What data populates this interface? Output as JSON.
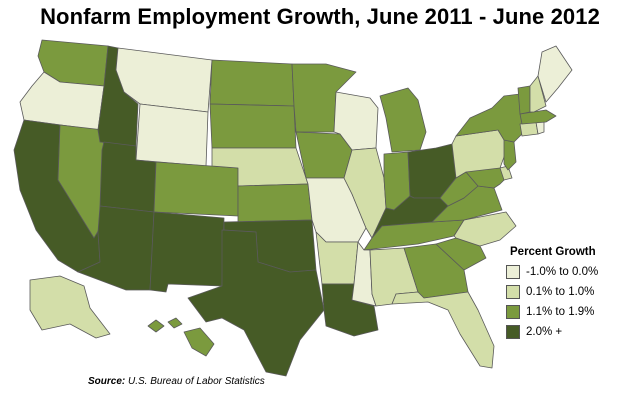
{
  "title": "Nonfarm Employment Growth, June 2011 - June 2012",
  "legend": {
    "title": "Percent Growth",
    "items": [
      {
        "label": "-1.0% to 0.0%",
        "color": "#ecefd7"
      },
      {
        "label": "0.1% to 1.0%",
        "color": "#d3dea9"
      },
      {
        "label": "1.1% to 1.9%",
        "color": "#7b9a3e"
      },
      {
        "label": "2.0% +",
        "color": "#465b26"
      }
    ]
  },
  "source": {
    "label": "Source:",
    "text": "U.S. Bureau of Labor Statistics"
  },
  "states": [
    {
      "name": "WA",
      "class": 2
    },
    {
      "name": "OR",
      "class": 0
    },
    {
      "name": "CA",
      "class": 3
    },
    {
      "name": "NV",
      "class": 2
    },
    {
      "name": "ID",
      "class": 3
    },
    {
      "name": "MT",
      "class": 0
    },
    {
      "name": "WY",
      "class": 0
    },
    {
      "name": "UT",
      "class": 3
    },
    {
      "name": "AZ",
      "class": 3
    },
    {
      "name": "CO",
      "class": 2
    },
    {
      "name": "NM",
      "class": 3
    },
    {
      "name": "ND",
      "class": 2
    },
    {
      "name": "SD",
      "class": 2
    },
    {
      "name": "NE",
      "class": 1
    },
    {
      "name": "KS",
      "class": 2
    },
    {
      "name": "OK",
      "class": 3
    },
    {
      "name": "TX",
      "class": 3
    },
    {
      "name": "MN",
      "class": 2
    },
    {
      "name": "IA",
      "class": 2
    },
    {
      "name": "MO",
      "class": 0
    },
    {
      "name": "AR",
      "class": 1
    },
    {
      "name": "LA",
      "class": 3
    },
    {
      "name": "WI",
      "class": 0
    },
    {
      "name": "IL",
      "class": 1
    },
    {
      "name": "MI",
      "class": 2
    },
    {
      "name": "IN",
      "class": 2
    },
    {
      "name": "OH",
      "class": 3
    },
    {
      "name": "KY",
      "class": 3
    },
    {
      "name": "TN",
      "class": 2
    },
    {
      "name": "MS",
      "class": 0
    },
    {
      "name": "AL",
      "class": 1
    },
    {
      "name": "GA",
      "class": 2
    },
    {
      "name": "FL",
      "class": 1
    },
    {
      "name": "SC",
      "class": 2
    },
    {
      "name": "NC",
      "class": 1
    },
    {
      "name": "VA",
      "class": 2
    },
    {
      "name": "WV",
      "class": 2
    },
    {
      "name": "MD",
      "class": 2
    },
    {
      "name": "DE",
      "class": 1
    },
    {
      "name": "PA",
      "class": 1
    },
    {
      "name": "NJ",
      "class": 2
    },
    {
      "name": "NY",
      "class": 2
    },
    {
      "name": "CT",
      "class": 1
    },
    {
      "name": "RI",
      "class": 0
    },
    {
      "name": "MA",
      "class": 2
    },
    {
      "name": "VT",
      "class": 2
    },
    {
      "name": "NH",
      "class": 1
    },
    {
      "name": "ME",
      "class": 0
    },
    {
      "name": "AK",
      "class": 1
    },
    {
      "name": "HI",
      "class": 2
    }
  ]
}
